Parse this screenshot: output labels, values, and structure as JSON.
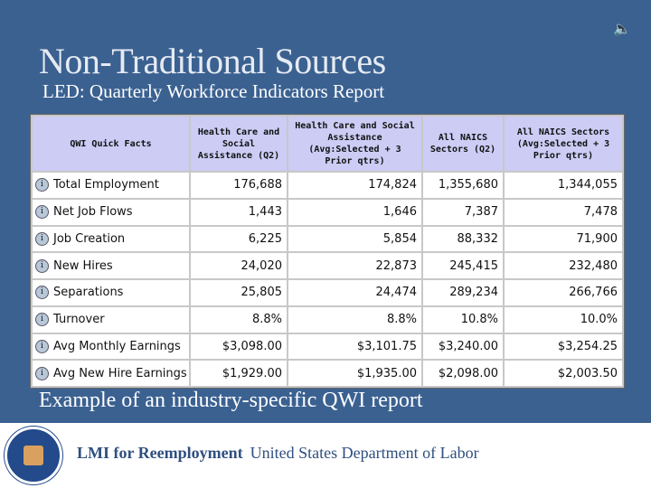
{
  "title": "Non-Traditional Sources",
  "subtitle": "LED: Quarterly Workforce Indicators Report",
  "table": {
    "headers": [
      "QWI Quick Facts",
      "Health Care and Social Assistance (Q2)",
      "Health Care and Social Assistance (Avg:Selected + 3 Prior qtrs)",
      "All NAICS Sectors (Q2)",
      "All NAICS Sectors (Avg:Selected + 3 Prior qtrs)"
    ],
    "rows": [
      [
        "Total Employment",
        "176,688",
        "174,824",
        "1,355,680",
        "1,344,055"
      ],
      [
        "Net Job Flows",
        "1,443",
        "1,646",
        "7,387",
        "7,478"
      ],
      [
        "Job Creation",
        "6,225",
        "5,854",
        "88,332",
        "71,900"
      ],
      [
        "New Hires",
        "24,020",
        "22,873",
        "245,415",
        "232,480"
      ],
      [
        "Separations",
        "25,805",
        "24,474",
        "289,234",
        "266,766"
      ],
      [
        "Turnover",
        "8.8%",
        "8.8%",
        "10.8%",
        "10.0%"
      ],
      [
        "Avg Monthly Earnings",
        "$3,098.00",
        "$3,101.75",
        "$3,240.00",
        "$3,254.25"
      ],
      [
        "Avg New Hire Earnings",
        "$1,929.00",
        "$1,935.00",
        "$2,098.00",
        "$2,003.50"
      ]
    ]
  },
  "caption": "Example of an industry-specific QWI report",
  "footer": {
    "bold": "LMI for Reemployment",
    "text": "United States Department of Labor"
  }
}
